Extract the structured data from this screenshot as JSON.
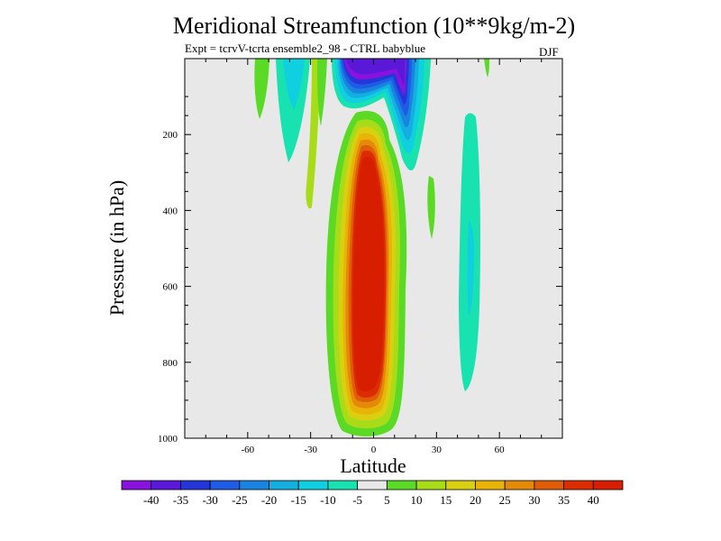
{
  "title": "Meridional Streamfunction (10**9kg/m-2)",
  "subtitle": "Expt = tcrvV-tcrta ensemble2_98 - CTRL babyblue",
  "season": "DJF",
  "chart_data": {
    "type": "heatmap",
    "title": "Meridional Streamfunction (10**9kg/m-2)",
    "xlabel": "Latitude",
    "ylabel": "Pressure (in hPa)",
    "xlim": [
      -90,
      90
    ],
    "ylim": [
      1000,
      0
    ],
    "x_ticks": [
      -60,
      -30,
      0,
      30,
      60
    ],
    "x_tick_labels": [
      "-60",
      "-30",
      "0",
      "30",
      "60"
    ],
    "y_ticks": [
      200,
      400,
      600,
      800,
      1000
    ],
    "y_tick_labels": [
      "200",
      "400",
      "600",
      "800",
      "1000"
    ],
    "colorbar": {
      "labels": [
        "-40",
        "-35",
        "-30",
        "-25",
        "-20",
        "-15",
        "-10",
        "-5",
        "5",
        "10",
        "15",
        "20",
        "25",
        "30",
        "35",
        "40"
      ],
      "colors": [
        "#8a12df",
        "#5a18d8",
        "#2436d8",
        "#1e5ce6",
        "#1884e0",
        "#14aee0",
        "#10cfe0",
        "#18e2b0",
        "#e8e8e8",
        "#5ada24",
        "#a8dc18",
        "#d8d010",
        "#e8b408",
        "#e48a08",
        "#e05c06",
        "#dc2c02",
        "#d81e00"
      ]
    },
    "features": [
      {
        "name": "main positive cell",
        "lat_center": -2,
        "p_top": 140,
        "p_bottom": 990,
        "peak": 40
      },
      {
        "name": "upper negative cell",
        "lat_center": -3,
        "p_top": 0,
        "p_bottom": 120,
        "peak": -40
      },
      {
        "name": "second upper negative cell",
        "lat_center": 15,
        "p_top": 0,
        "p_bottom": 300,
        "peak": -40
      },
      {
        "name": "southern weak negative",
        "lat_center": -35,
        "p_top": 0,
        "p_bottom": 280,
        "peak": -10
      },
      {
        "name": "northern weak negative",
        "lat_center": 45,
        "p_top": 140,
        "p_bottom": 880,
        "peak": -10
      }
    ]
  }
}
